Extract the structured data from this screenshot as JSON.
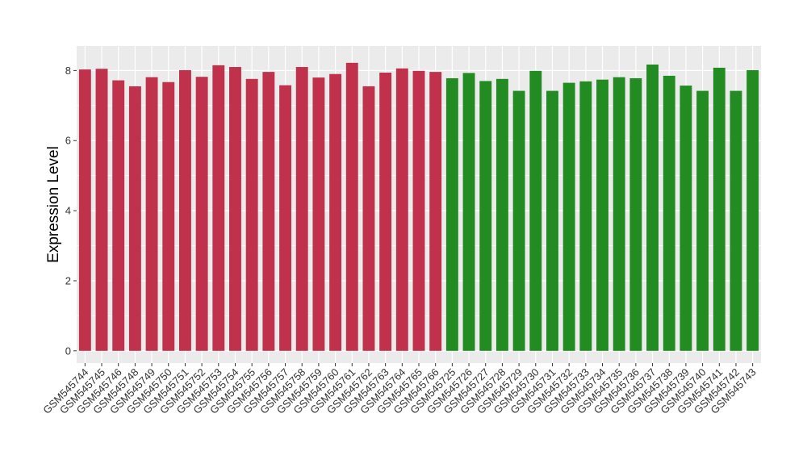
{
  "chart_data": {
    "type": "bar",
    "title": "",
    "xlabel": "",
    "ylabel": "Expression Level",
    "ylim": [
      -0.35,
      8.7
    ],
    "yticks": [
      0,
      2,
      4,
      6,
      8
    ],
    "grid": true,
    "legend": "none",
    "colors": {
      "group1": "#c0314c",
      "group2": "#228b22",
      "panel": "#ebebeb",
      "gridline": "#ffffff"
    },
    "series": [
      {
        "categories": [
          "GSM545744",
          "GSM545745",
          "GSM545746",
          "GSM545748",
          "GSM545749",
          "GSM545750",
          "GSM545751",
          "GSM545752",
          "GSM545753",
          "GSM545754",
          "GSM545755",
          "GSM545756",
          "GSM545757",
          "GSM545758",
          "GSM545759",
          "GSM545760",
          "GSM545761",
          "GSM545762",
          "GSM545763",
          "GSM545764",
          "GSM545765",
          "GSM545766"
        ],
        "values": [
          8.03,
          8.05,
          7.72,
          7.55,
          7.81,
          7.67,
          8.01,
          7.82,
          8.15,
          8.1,
          7.76,
          7.96,
          7.58,
          8.1,
          7.8,
          7.9,
          8.22,
          7.55,
          7.94,
          8.06,
          7.99,
          7.96
        ],
        "color": "#c0314c"
      },
      {
        "categories": [
          "GSM545725",
          "GSM545726",
          "GSM545727",
          "GSM545728",
          "GSM545729",
          "GSM545730",
          "GSM545731",
          "GSM545732",
          "GSM545733",
          "GSM545734",
          "GSM545735",
          "GSM545736",
          "GSM545737",
          "GSM545738",
          "GSM545739",
          "GSM545740",
          "GSM545741",
          "GSM545742",
          "GSM545743"
        ],
        "values": [
          7.78,
          7.93,
          7.7,
          7.76,
          7.42,
          7.99,
          7.42,
          7.65,
          7.69,
          7.74,
          7.81,
          7.78,
          8.17,
          7.85,
          7.57,
          7.42,
          8.08,
          7.42,
          8.01
        ],
        "color": "#228b22"
      }
    ]
  }
}
